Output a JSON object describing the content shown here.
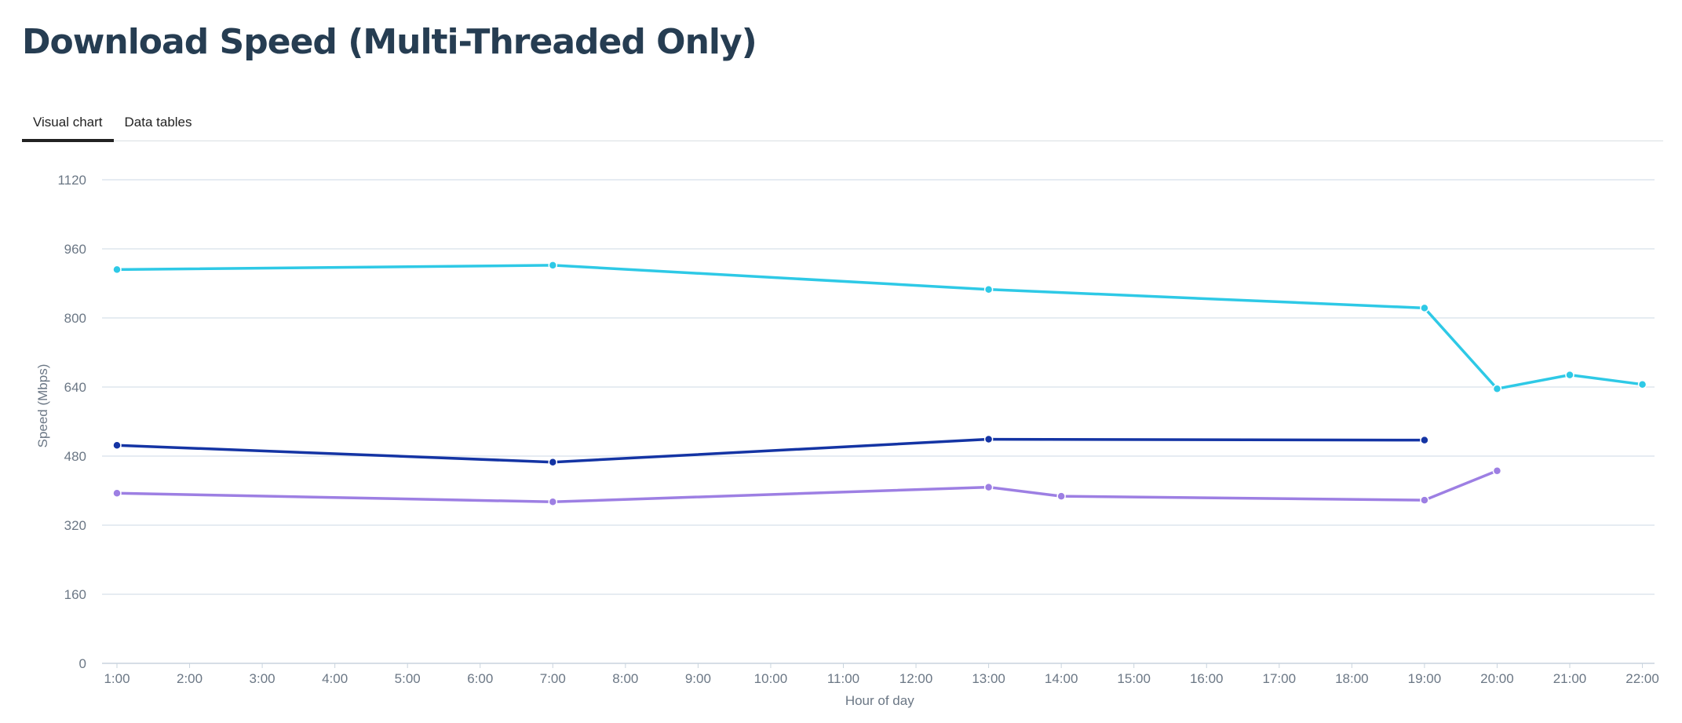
{
  "page": {
    "title": "Download Speed (Multi-Threaded Only)",
    "tabs": [
      {
        "label": "Visual chart",
        "active": true
      },
      {
        "label": "Data tables",
        "active": false
      }
    ]
  },
  "chart_data": {
    "type": "line",
    "title": "",
    "xlabel": "Hour of day",
    "ylabel": "Speed (Mbps)",
    "ylim": [
      0,
      1120
    ],
    "yticks": [
      0,
      160,
      320,
      480,
      640,
      800,
      960,
      1120
    ],
    "x": [
      "1:00",
      "2:00",
      "3:00",
      "4:00",
      "5:00",
      "6:00",
      "7:00",
      "8:00",
      "9:00",
      "10:00",
      "11:00",
      "12:00",
      "13:00",
      "14:00",
      "15:00",
      "16:00",
      "17:00",
      "18:00",
      "19:00",
      "20:00",
      "21:00",
      "22:00"
    ],
    "grid": true,
    "legend": "none",
    "series": [
      {
        "color": "#2ec9e6",
        "values": [
          912,
          null,
          null,
          null,
          null,
          null,
          922,
          null,
          null,
          null,
          null,
          null,
          866,
          null,
          null,
          null,
          null,
          null,
          823,
          636,
          668,
          646
        ]
      },
      {
        "color": "#1434a4",
        "values": [
          505,
          null,
          null,
          null,
          null,
          null,
          466,
          null,
          null,
          null,
          null,
          null,
          519,
          null,
          null,
          null,
          null,
          null,
          517,
          null,
          null,
          null
        ]
      },
      {
        "color": "#9d7fe3",
        "values": [
          394,
          null,
          null,
          null,
          null,
          null,
          374,
          null,
          null,
          null,
          null,
          null,
          408,
          387,
          null,
          null,
          null,
          null,
          378,
          446,
          null,
          null
        ]
      }
    ]
  }
}
